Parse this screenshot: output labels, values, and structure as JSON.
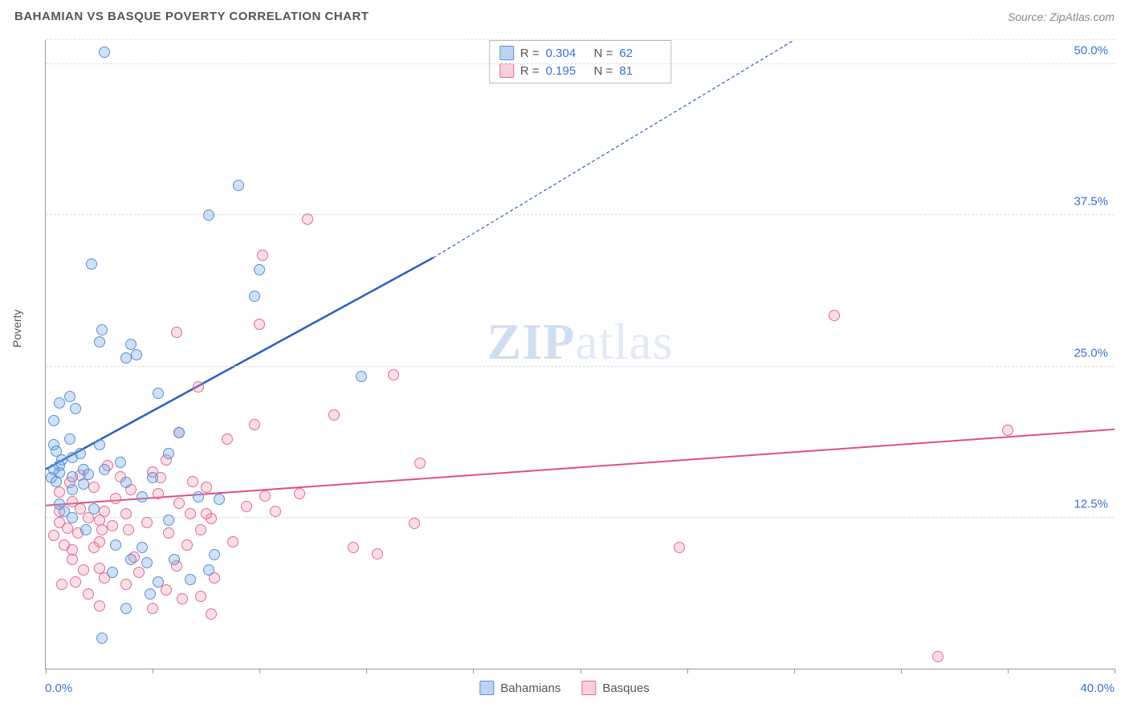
{
  "header": {
    "title": "BAHAMIAN VS BASQUE POVERTY CORRELATION CHART",
    "source_prefix": "Source: ",
    "source_name": "ZipAtlas.com"
  },
  "ylabel": "Poverty",
  "watermark": {
    "zip": "ZIP",
    "atlas": "atlas"
  },
  "axes": {
    "xmin": 0,
    "xmax": 40,
    "ymin": 0,
    "ymax": 52,
    "x_label_min": "0.0%",
    "x_label_max": "40.0%",
    "y_ticks": [
      12.5,
      25.0,
      37.5,
      50.0
    ],
    "y_tick_labels": [
      "12.5%",
      "25.0%",
      "37.5%",
      "50.0%"
    ],
    "x_minor_ticks": [
      0,
      4,
      8,
      12,
      16,
      20,
      24,
      28,
      32,
      36,
      40
    ],
    "x_axis_color": "#999999",
    "y_axis_color": "#999999",
    "grid_color": "#dddddd",
    "tick_label_color": "#3b6fd6"
  },
  "series": {
    "bahamians": {
      "label": "Bahamians",
      "fill": "rgba(120,170,230,0.35)",
      "stroke": "#5a8fd6",
      "trend_color": "#2b5fc0",
      "trend_start": [
        0,
        16.5
      ],
      "trend_solid_end": [
        14.5,
        34
      ],
      "trend_dash_end": [
        28,
        52
      ],
      "r_value": "0.304",
      "n_value": "62",
      "points": [
        [
          2.2,
          51
        ],
        [
          7.2,
          40
        ],
        [
          6.1,
          37.5
        ],
        [
          8.0,
          33
        ],
        [
          7.8,
          30.8
        ],
        [
          1.7,
          33.5
        ],
        [
          2.1,
          28
        ],
        [
          2.0,
          27
        ],
        [
          3.2,
          26.8
        ],
        [
          3.0,
          25.7
        ],
        [
          3.4,
          26
        ],
        [
          0.9,
          22.5
        ],
        [
          0.5,
          22
        ],
        [
          1.1,
          21.5
        ],
        [
          4.2,
          22.8
        ],
        [
          11.8,
          24.2
        ],
        [
          0.3,
          18.5
        ],
        [
          0.4,
          18
        ],
        [
          0.6,
          17.3
        ],
        [
          0.5,
          16.8
        ],
        [
          0.5,
          16.2
        ],
        [
          0.2,
          15.8
        ],
        [
          0.4,
          15.5
        ],
        [
          1.0,
          17.5
        ],
        [
          1.0,
          15.9
        ],
        [
          1.3,
          17.8
        ],
        [
          1.4,
          16.5
        ],
        [
          1.6,
          16.1
        ],
        [
          1.4,
          15.3
        ],
        [
          2.2,
          16.5
        ],
        [
          2.8,
          17.1
        ],
        [
          3.0,
          15.4
        ],
        [
          4.6,
          17.8
        ],
        [
          4.0,
          15.8
        ],
        [
          3.6,
          14.2
        ],
        [
          2.0,
          18.5
        ],
        [
          0.5,
          13.6
        ],
        [
          0.7,
          13.0
        ],
        [
          1.0,
          12.5
        ],
        [
          1.5,
          11.5
        ],
        [
          2.6,
          10.2
        ],
        [
          2.5,
          8.0
        ],
        [
          3.2,
          9.0
        ],
        [
          3.8,
          8.8
        ],
        [
          3.6,
          10.0
        ],
        [
          4.8,
          9.0
        ],
        [
          3.9,
          6.2
        ],
        [
          3.0,
          5.0
        ],
        [
          6.3,
          9.4
        ],
        [
          6.1,
          8.2
        ],
        [
          2.1,
          2.5
        ],
        [
          5.0,
          19.5
        ],
        [
          0.9,
          19
        ],
        [
          0.3,
          20.5
        ],
        [
          5.7,
          14.2
        ],
        [
          6.5,
          14.0
        ],
        [
          1.0,
          14.8
        ],
        [
          4.2,
          7.2
        ],
        [
          5.4,
          7.4
        ],
        [
          4.6,
          12.3
        ],
        [
          0.3,
          16.5
        ],
        [
          1.8,
          13.2
        ]
      ]
    },
    "basques": {
      "label": "Basques",
      "fill": "rgba(240,150,175,0.30)",
      "stroke": "#e26b8f",
      "trend_color": "#e05080",
      "trend_start": [
        0,
        13.5
      ],
      "trend_solid_end": [
        40,
        19.8
      ],
      "r_value": "0.195",
      "n_value": "81",
      "points": [
        [
          29.5,
          29.2
        ],
        [
          36.0,
          19.7
        ],
        [
          23.7,
          10.0
        ],
        [
          33.4,
          1.0
        ],
        [
          9.8,
          37.2
        ],
        [
          8.1,
          34.2
        ],
        [
          8.0,
          28.5
        ],
        [
          13.0,
          24.3
        ],
        [
          10.8,
          21.0
        ],
        [
          7.8,
          20.2
        ],
        [
          5.7,
          23.3
        ],
        [
          4.9,
          27.8
        ],
        [
          6.8,
          19.0
        ],
        [
          5.0,
          19.5
        ],
        [
          4.5,
          17.3
        ],
        [
          4.0,
          16.3
        ],
        [
          4.3,
          15.8
        ],
        [
          4.2,
          14.5
        ],
        [
          5.0,
          13.7
        ],
        [
          5.4,
          12.8
        ],
        [
          5.8,
          11.5
        ],
        [
          6.2,
          12.4
        ],
        [
          7.5,
          13.4
        ],
        [
          8.2,
          14.3
        ],
        [
          1.0,
          13.8
        ],
        [
          0.5,
          13.0
        ],
        [
          0.5,
          12.1
        ],
        [
          0.8,
          11.6
        ],
        [
          1.2,
          11.2
        ],
        [
          0.7,
          10.2
        ],
        [
          1.0,
          9.8
        ],
        [
          1.0,
          9.0
        ],
        [
          1.4,
          8.2
        ],
        [
          1.1,
          7.2
        ],
        [
          0.6,
          7.0
        ],
        [
          1.6,
          6.2
        ],
        [
          2.0,
          8.3
        ],
        [
          2.2,
          7.5
        ],
        [
          2.0,
          10.5
        ],
        [
          2.1,
          11.5
        ],
        [
          2.5,
          11.8
        ],
        [
          2.2,
          13.0
        ],
        [
          2.6,
          14.1
        ],
        [
          3.0,
          12.8
        ],
        [
          3.1,
          11.5
        ],
        [
          3.3,
          9.2
        ],
        [
          3.5,
          8.0
        ],
        [
          4.5,
          6.5
        ],
        [
          4.0,
          5.0
        ],
        [
          5.1,
          5.8
        ],
        [
          5.8,
          6.0
        ],
        [
          6.3,
          7.5
        ],
        [
          6.2,
          4.5
        ],
        [
          6.0,
          12.8
        ],
        [
          3.8,
          12.1
        ],
        [
          1.8,
          15.0
        ],
        [
          1.3,
          16.0
        ],
        [
          0.5,
          14.6
        ],
        [
          0.9,
          15.4
        ],
        [
          2.8,
          15.9
        ],
        [
          13.8,
          12.0
        ],
        [
          12.4,
          9.5
        ],
        [
          11.5,
          10.0
        ],
        [
          14.0,
          17.0
        ],
        [
          9.5,
          14.5
        ],
        [
          0.3,
          11.0
        ],
        [
          1.6,
          12.5
        ],
        [
          1.8,
          10.0
        ],
        [
          4.9,
          8.5
        ],
        [
          3.0,
          7.0
        ],
        [
          2.0,
          5.2
        ],
        [
          5.3,
          10.2
        ],
        [
          7.0,
          10.5
        ],
        [
          3.2,
          14.8
        ],
        [
          1.3,
          13.2
        ],
        [
          4.6,
          11.2
        ],
        [
          2.3,
          16.8
        ],
        [
          5.5,
          15.5
        ],
        [
          6.0,
          15.0
        ],
        [
          8.6,
          13.0
        ],
        [
          2.0,
          12.3
        ]
      ]
    }
  },
  "legend_top": {
    "r_label": "R =",
    "n_label": "N ="
  },
  "legend_bottom": {
    "items": [
      "Bahamians",
      "Basques"
    ]
  }
}
